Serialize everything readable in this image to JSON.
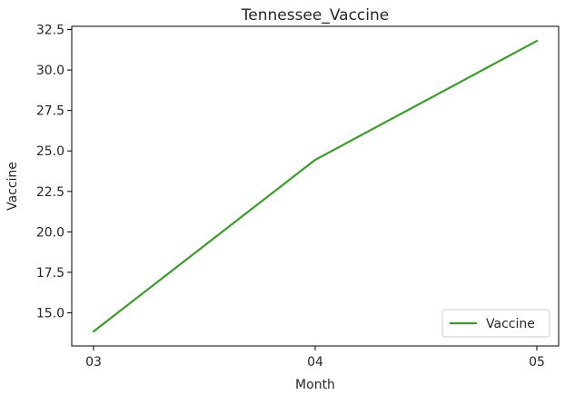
{
  "chart_data": {
    "type": "line",
    "title": "Tennessee_Vaccine",
    "xlabel": "Month",
    "ylabel": "Vaccine",
    "categories": [
      "03",
      "04",
      "05"
    ],
    "series": [
      {
        "name": "Vaccine",
        "values": [
          13.85,
          24.45,
          31.8
        ],
        "color": "#3a9a2a"
      }
    ],
    "yticks": [
      15.0,
      17.5,
      20.0,
      22.5,
      25.0,
      27.5,
      30.0,
      32.5
    ],
    "ytick_labels": [
      "15.0",
      "17.5",
      "20.0",
      "22.5",
      "25.0",
      "27.5",
      "30.0",
      "32.5"
    ],
    "ylim": [
      12.95,
      32.7
    ],
    "grid": false,
    "legend_position": "lower right"
  }
}
